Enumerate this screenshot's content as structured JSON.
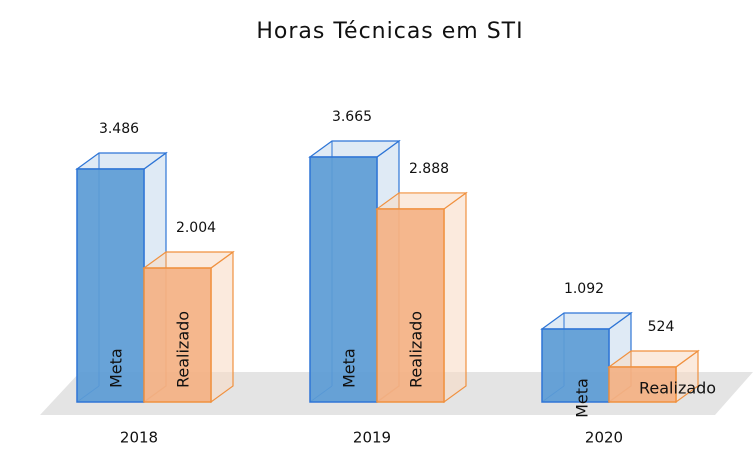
{
  "chart_data": {
    "type": "bar3d",
    "title": "Horas Técnicas em STI",
    "categories": [
      "2018",
      "2019",
      "2020"
    ],
    "series": [
      {
        "name": "Meta",
        "color": "#5b9bd5",
        "values": [
          3486,
          3665,
          1092
        ],
        "value_labels": [
          "3.486",
          "3.665",
          "1.092"
        ]
      },
      {
        "name": "Realizado",
        "color": "#f4b183",
        "values": [
          2004,
          2888,
          524
        ],
        "value_labels": [
          "2.004",
          "2.888",
          "524"
        ]
      }
    ]
  }
}
